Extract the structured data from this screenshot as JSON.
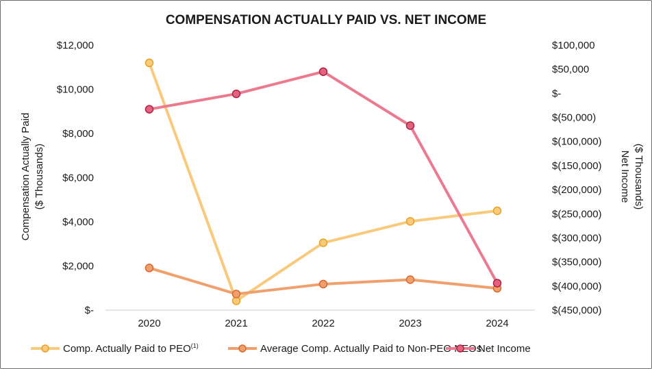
{
  "chart_data": {
    "type": "line",
    "title": "COMPENSATION ACTUALLY PAID VS. NET INCOME",
    "categories": [
      "2020",
      "2021",
      "2022",
      "2023",
      "2024"
    ],
    "y_left": {
      "label_line1": "Compensation Actually Paid",
      "label_line2": "($ Thousands)",
      "range": [
        0,
        12000
      ],
      "ticks": [
        {
          "value": 12000,
          "label": "$12,000"
        },
        {
          "value": 10000,
          "label": "$10,000"
        },
        {
          "value": 8000,
          "label": "$8,000"
        },
        {
          "value": 6000,
          "label": "$6,000"
        },
        {
          "value": 4000,
          "label": "$4,000"
        },
        {
          "value": 2000,
          "label": "$2,000"
        },
        {
          "value": 0,
          "label": "$-"
        }
      ]
    },
    "y_right": {
      "label_line1": "Net Income",
      "label_line2": "($ Thousands)",
      "range": [
        -450000,
        100000
      ],
      "ticks": [
        {
          "value": 100000,
          "label": "$100,000"
        },
        {
          "value": 50000,
          "label": "$50,000"
        },
        {
          "value": 0,
          "label": "$-"
        },
        {
          "value": -50000,
          "label": "$(50,000)"
        },
        {
          "value": -100000,
          "label": "$(100,000)"
        },
        {
          "value": -150000,
          "label": "$(150,000)"
        },
        {
          "value": -200000,
          "label": "$(200,000)"
        },
        {
          "value": -250000,
          "label": "$(250,000)"
        },
        {
          "value": -300000,
          "label": "$(300,000)"
        },
        {
          "value": -350000,
          "label": "$(350,000)"
        },
        {
          "value": -400000,
          "label": "$(400,000)"
        },
        {
          "value": -450000,
          "label": "$(450,000)"
        }
      ]
    },
    "series": [
      {
        "name": "Comp. Actually Paid to PEO",
        "superscript": "(1)",
        "axis": "left",
        "values": [
          11200,
          420,
          3050,
          4020,
          4500
        ],
        "line_color": "#f9c97c",
        "marker_fill": "#f9c97c",
        "marker_stroke": "#e8a21f"
      },
      {
        "name": "Average Comp. Actually Paid to Non-PEO NEOs",
        "superscript": "",
        "axis": "left",
        "values": [
          1910,
          730,
          1180,
          1380,
          990
        ],
        "line_color": "#f0a06c",
        "marker_fill": "#f0a06c",
        "marker_stroke": "#d9682e"
      },
      {
        "name": "Net Income",
        "superscript": "",
        "axis": "right",
        "values": [
          -33000,
          -1000,
          45000,
          -67000,
          -394000
        ],
        "line_color": "#ec7a8f",
        "marker_fill": "#e6617f",
        "marker_stroke": "#a8243f"
      }
    ],
    "grid": false,
    "legend_position": "bottom"
  }
}
